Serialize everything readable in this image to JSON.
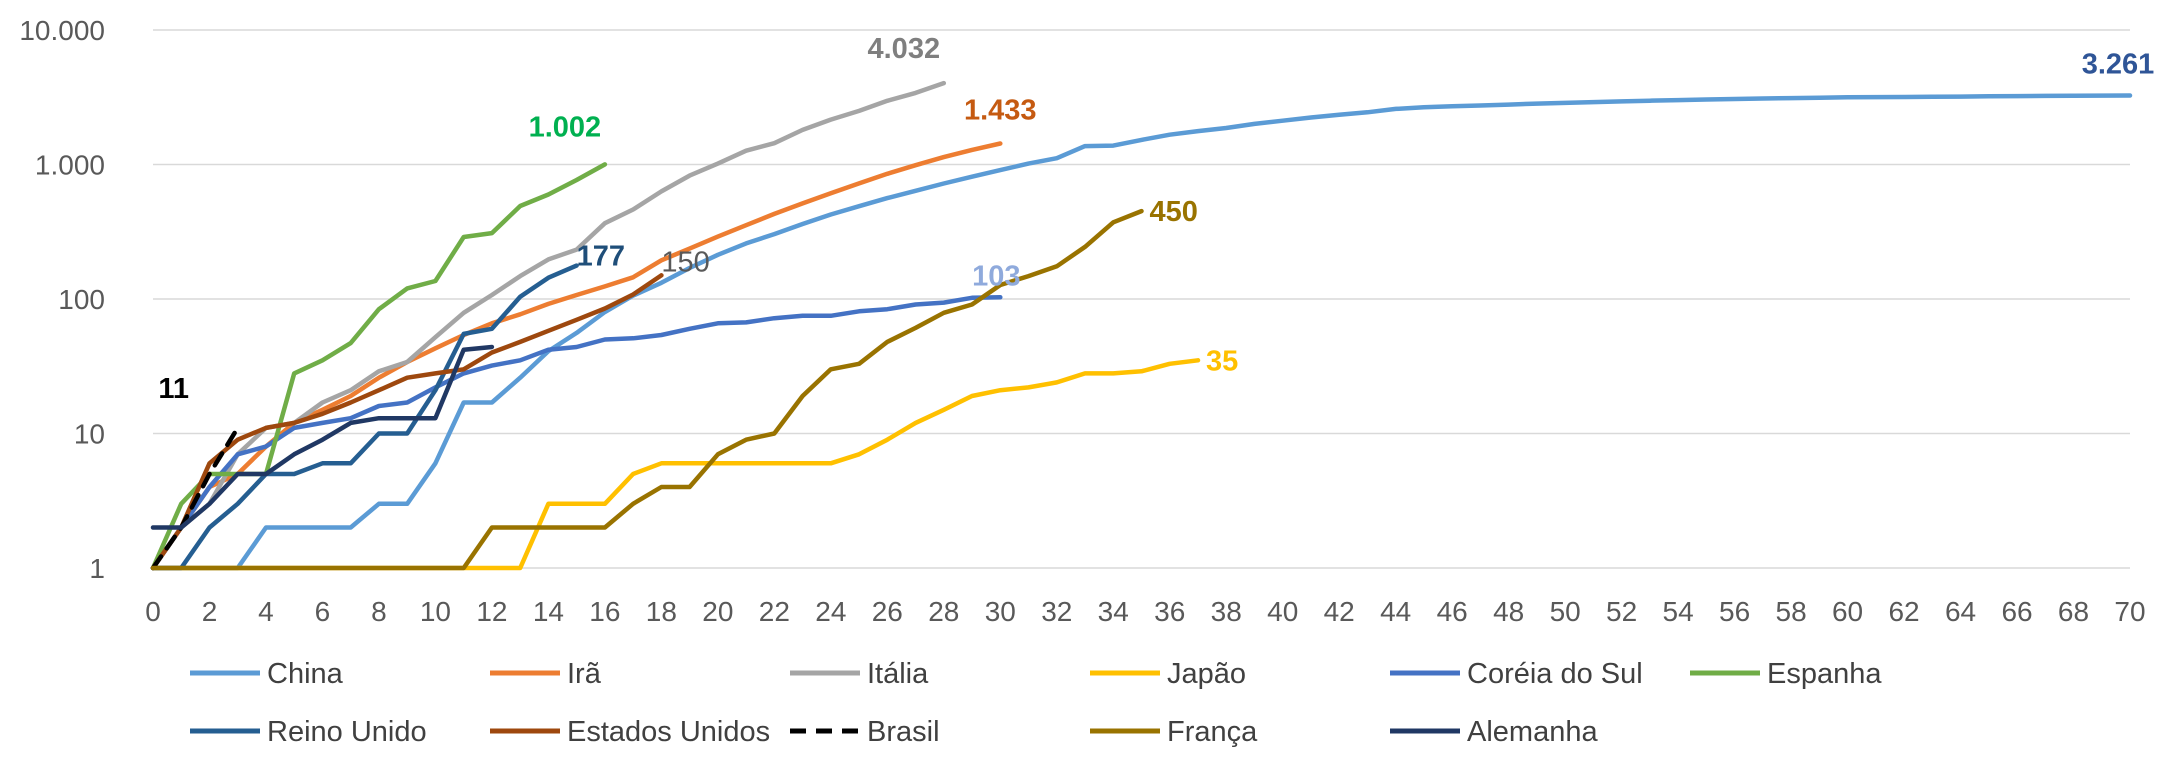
{
  "chart_data": {
    "type": "line",
    "title": "",
    "xlabel": "",
    "ylabel": "",
    "y_scale": "log",
    "ylim": [
      1,
      10000
    ],
    "xlim": [
      0,
      70
    ],
    "y_tick_values": [
      1,
      10,
      100,
      1000,
      10000
    ],
    "y_tick_labels": [
      "1",
      "10",
      "100",
      "1.000",
      "10.000"
    ],
    "x_tick_values": [
      0,
      2,
      4,
      6,
      8,
      10,
      12,
      14,
      16,
      18,
      20,
      22,
      24,
      26,
      28,
      30,
      32,
      34,
      36,
      38,
      40,
      42,
      44,
      46,
      48,
      50,
      52,
      54,
      56,
      58,
      60,
      62,
      64,
      66,
      68,
      70
    ],
    "x_tick_labels": [
      "0",
      "2",
      "4",
      "6",
      "8",
      "10",
      "12",
      "14",
      "16",
      "18",
      "20",
      "22",
      "24",
      "26",
      "28",
      "30",
      "32",
      "34",
      "36",
      "38",
      "40",
      "42",
      "44",
      "46",
      "48",
      "50",
      "52",
      "54",
      "56",
      "58",
      "60",
      "62",
      "64",
      "66",
      "68",
      "70"
    ],
    "grid": "horizontal",
    "legend_position": "bottom",
    "series": [
      {
        "name": "China",
        "color": "#5B9BD5",
        "dash": false,
        "values": [
          1,
          1,
          1,
          1,
          2,
          2,
          2,
          2,
          3,
          3,
          6,
          17,
          17,
          26,
          41,
          56,
          80,
          106,
          132,
          170,
          213,
          259,
          304,
          361,
          425,
          490,
          563,
          637,
          722,
          811,
          908,
          1016,
          1113,
          1371,
          1381,
          1523,
          1665,
          1770,
          1868,
          2004,
          2118,
          2236,
          2345,
          2442,
          2592,
          2663,
          2715,
          2744,
          2788,
          2835,
          2870,
          2912,
          2943,
          2981,
          3012,
          3042,
          3070,
          3097,
          3119,
          3136,
          3158,
          3169,
          3176,
          3189,
          3199,
          3213,
          3226,
          3237,
          3245,
          3253,
          3261
        ],
        "end_label": "3.261",
        "label_color": "#2F5597",
        "label_bold": true
      },
      {
        "name": "Irã",
        "color": "#ED7D31",
        "dash": false,
        "values": [
          1,
          2,
          4,
          5,
          8,
          12,
          15,
          19,
          26,
          34,
          43,
          54,
          66,
          77,
          92,
          107,
          124,
          145,
          194,
          237,
          291,
          354,
          429,
          514,
          611,
          724,
          853,
          988,
          1135,
          1284,
          1433
        ],
        "end_label": "1.433",
        "label_color": "#C55A11",
        "label_bold": true
      },
      {
        "name": "Itália",
        "color": "#A5A5A5",
        "dash": false,
        "values": [
          1,
          2,
          3,
          7,
          11,
          12,
          17,
          21,
          29,
          34,
          52,
          79,
          107,
          148,
          197,
          233,
          366,
          463,
          631,
          827,
          1016,
          1266,
          1441,
          1809,
          2158,
          2503,
          2978,
          3405,
          4032
        ],
        "end_label": "4.032",
        "label_color": "#7F7F7F",
        "label_bold": true
      },
      {
        "name": "Japão",
        "color": "#FFC000",
        "dash": false,
        "values": [
          1,
          1,
          1,
          1,
          1,
          1,
          1,
          1,
          1,
          1,
          1,
          1,
          1,
          1,
          3,
          3,
          3,
          5,
          6,
          6,
          6,
          6,
          6,
          6,
          6,
          7,
          9,
          12,
          15,
          19,
          21,
          22,
          24,
          28,
          28,
          29,
          33,
          35
        ],
        "end_label": "35",
        "label_color": "#FFC000",
        "label_bold": true
      },
      {
        "name": "Coréia do Sul",
        "color": "#4472C4",
        "dash": false,
        "values": [
          1,
          2,
          4,
          7,
          8,
          11,
          12,
          13,
          16,
          17,
          22,
          28,
          32,
          35,
          42,
          44,
          50,
          51,
          54,
          60,
          66,
          67,
          72,
          75,
          75,
          81,
          84,
          91,
          94,
          102,
          103
        ],
        "end_label": "103",
        "label_color": "#8FAADC",
        "label_bold": true
      },
      {
        "name": "Espanha",
        "color": "#70AD47",
        "dash": false,
        "values": [
          1,
          3,
          5,
          5,
          5,
          28,
          35,
          47,
          84,
          120,
          136,
          289,
          309,
          491,
          598,
          767,
          1002
        ],
        "end_label": "1.002",
        "label_color": "#00B050",
        "label_bold": true
      },
      {
        "name": "Reino Unido",
        "color": "#255E91",
        "dash": false,
        "values": [
          1,
          1,
          2,
          3,
          5,
          5,
          6,
          6,
          10,
          10,
          21,
          55,
          60,
          104,
          144,
          177
        ],
        "end_label": "177",
        "label_color": "#1F4E79",
        "label_bold": true
      },
      {
        "name": "Estados Unidos",
        "color": "#9E480E",
        "dash": false,
        "values": [
          1,
          2,
          6,
          9,
          11,
          12,
          14,
          17,
          21,
          26,
          28,
          30,
          40,
          48,
          58,
          70,
          85,
          108,
          150
        ],
        "end_label": "150",
        "label_color": "#595959",
        "label_bold": false
      },
      {
        "name": "Brasil",
        "color": "#000000",
        "dash": true,
        "values": [
          1,
          2,
          5,
          11
        ],
        "end_label": "11",
        "label_color": "#000000",
        "label_bold": true
      },
      {
        "name": "França",
        "color": "#997300",
        "dash": false,
        "values": [
          1,
          1,
          1,
          1,
          1,
          1,
          1,
          1,
          1,
          1,
          1,
          1,
          2,
          2,
          2,
          2,
          2,
          3,
          4,
          4,
          7,
          9,
          10,
          19,
          30,
          33,
          48,
          61,
          79,
          91,
          127,
          148,
          175,
          244,
          372,
          450
        ],
        "end_label": "450",
        "label_color": "#997300",
        "label_bold": true
      },
      {
        "name": "Alemanha",
        "color": "#203864",
        "dash": false,
        "values": [
          2,
          2,
          3,
          5,
          5,
          7,
          9,
          12,
          13,
          13,
          13,
          42,
          44
        ],
        "end_label": "",
        "label_color": "#203864",
        "label_bold": true
      }
    ]
  }
}
